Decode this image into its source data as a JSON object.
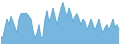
{
  "chart_data": {
    "type": "area",
    "values": [
      5,
      5,
      12,
      18,
      14,
      20,
      16,
      12,
      8,
      18,
      22,
      22,
      22,
      22,
      20,
      18,
      10,
      4,
      8,
      14,
      4,
      6,
      18,
      24,
      16,
      20,
      26,
      20,
      14,
      20,
      26,
      30,
      24,
      20,
      26,
      22,
      16,
      20,
      22,
      18,
      14,
      18,
      16,
      10,
      14,
      18,
      14,
      10,
      14,
      18,
      12,
      8,
      12,
      14,
      10,
      14,
      18,
      12,
      14,
      10
    ],
    "color": "#4a9fd4",
    "ylim": [
      0,
      31
    ],
    "grid": false,
    "tick_labels": false
  }
}
